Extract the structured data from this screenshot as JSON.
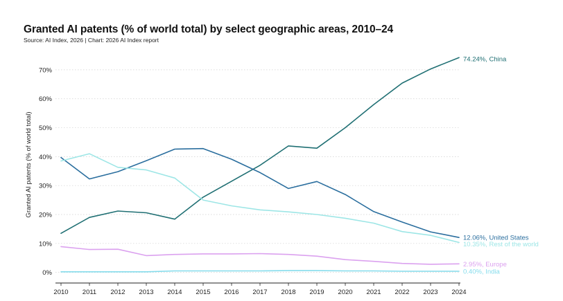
{
  "title": "Granted AI patents (% of world total) by select geographic areas, 2010–24",
  "subtitle": "Source: AI Index, 2026 | Chart: 2026 AI Index report",
  "chart_data": {
    "type": "line",
    "title": "Granted AI patents (% of world total) by select geographic areas, 2010–24",
    "xlabel": "",
    "ylabel": "Granted AI patents (% of world total)",
    "x": [
      2010,
      2011,
      2012,
      2013,
      2014,
      2015,
      2016,
      2017,
      2018,
      2019,
      2020,
      2021,
      2022,
      2023,
      2024
    ],
    "ylim": [
      -2,
      75
    ],
    "yticks": [
      0,
      10,
      20,
      30,
      40,
      50,
      60,
      70
    ],
    "ytick_labels": [
      "0%",
      "10%",
      "20%",
      "30%",
      "40%",
      "50%",
      "60%",
      "70%"
    ],
    "grid": "horizontal-dotted",
    "legend": "end-of-line labels",
    "series": [
      {
        "name": "China",
        "end_label": "74.24%, China",
        "color": "#1f6f73",
        "values": [
          13.5,
          19.0,
          21.2,
          20.6,
          18.4,
          26.0,
          31.5,
          37.0,
          43.7,
          42.9,
          50.0,
          58.0,
          65.4,
          70.3,
          74.24
        ]
      },
      {
        "name": "United States",
        "end_label": "12.06%, United States",
        "color": "#2a6e9e",
        "values": [
          39.7,
          32.3,
          34.8,
          38.6,
          42.6,
          42.8,
          39.1,
          34.5,
          29.0,
          31.4,
          26.9,
          21.0,
          17.4,
          14.0,
          12.06
        ]
      },
      {
        "name": "Rest of the world",
        "end_label": "10.35%, Rest of the world",
        "color": "#9de6e6",
        "values": [
          38.5,
          41.0,
          36.3,
          35.4,
          32.6,
          25.0,
          23.0,
          21.6,
          20.9,
          20.0,
          18.7,
          17.0,
          14.1,
          12.8,
          10.35
        ]
      },
      {
        "name": "Europe",
        "end_label": "2.95%, Europe",
        "color": "#dba1ef",
        "values": [
          8.9,
          7.9,
          8.0,
          5.8,
          6.2,
          6.4,
          6.4,
          6.5,
          6.2,
          5.6,
          4.4,
          3.8,
          3.1,
          2.8,
          2.95
        ]
      },
      {
        "name": "India",
        "end_label": "0.40%, India",
        "color": "#84dcec",
        "values": [
          0.2,
          0.2,
          0.2,
          0.2,
          0.5,
          0.5,
          0.5,
          0.5,
          0.6,
          0.6,
          0.5,
          0.5,
          0.4,
          0.4,
          0.4
        ]
      }
    ]
  }
}
